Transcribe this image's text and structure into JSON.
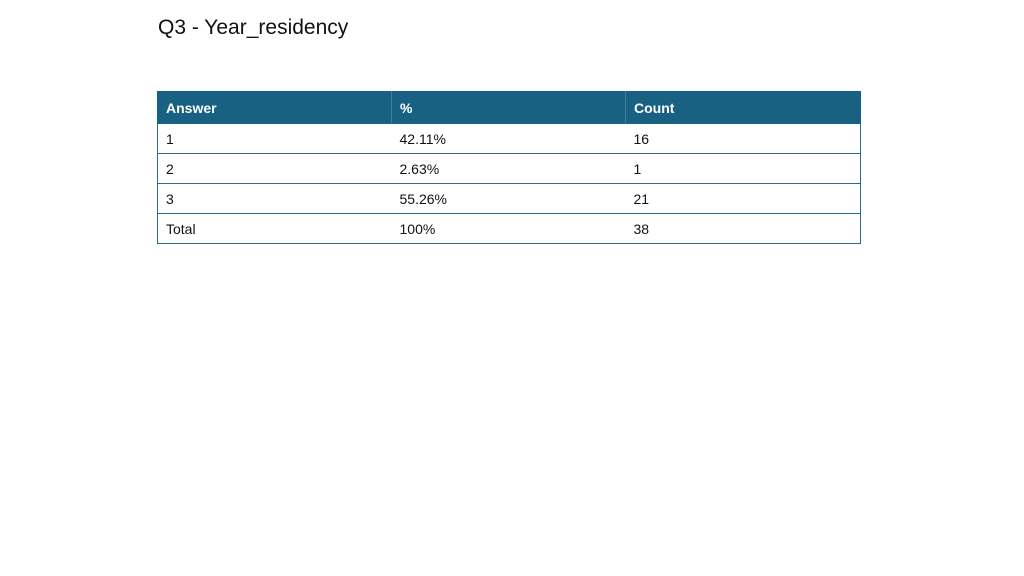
{
  "title": "Q3 - Year_residency",
  "table": {
    "headers": [
      "Answer",
      "%",
      "Count"
    ],
    "rows": [
      [
        "1",
        "42.11%",
        "16"
      ],
      [
        "2",
        "2.63%",
        "1"
      ],
      [
        "3",
        "55.26%",
        "21"
      ],
      [
        "Total",
        "100%",
        "38"
      ]
    ]
  },
  "colors": {
    "header_background": "#186183",
    "header_text": "#ffffff",
    "border": "#2a6c8c"
  }
}
